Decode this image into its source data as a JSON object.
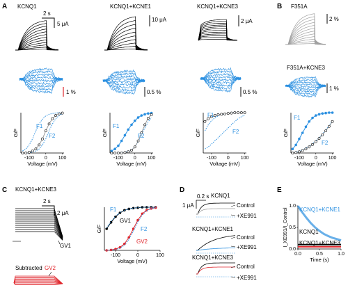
{
  "colors": {
    "black": "#000000",
    "blue": "#2a8fe0",
    "gray": "#a0a0a0",
    "red": "#e0262c",
    "fit_gray": "#9a9a9a"
  },
  "panels": {
    "A": "A",
    "B": "B",
    "C": "C",
    "D": "D",
    "E": "E"
  },
  "titles": {
    "kcnq1": "KCNQ1",
    "kcnq1_kcne1": "KCNQ1+KCNE1",
    "kcnq1_kcne3": "KCNQ1+KCNE3",
    "f351a": "F351A",
    "f351a_kcne3": "F351A+KCNE3",
    "c_title": "KCNQ1+KCNE3",
    "d_kcnq1": "KCNQ1",
    "d_kcne1": "KCNQ1+KCNE1",
    "d_kcne3": "KCNQ1+KCNE3"
  },
  "scalebars": {
    "a_time": "2 s",
    "a1_cur": "5 μA",
    "a2_cur": "10 μA",
    "a3_cur": "2 μA",
    "b_fl": "2 %",
    "a1_fl": "1 %",
    "a2_fl": "0.5 %",
    "a3_fl": "0.5 %",
    "b2_fl": "1 %",
    "c_time": "2 s",
    "c_cur": "2 μA",
    "d_time": "0.2 s",
    "d_cur": "1 μA"
  },
  "gv_axes": {
    "ylabel": "G/F",
    "xlabel": "Voltage (mV)",
    "xticks": [
      "-100",
      "0",
      "100"
    ]
  },
  "gv_labels": {
    "f1": "F1",
    "f2": "F2",
    "gv1": "GV1",
    "gv2": "GV2"
  },
  "c_labels": {
    "gv1": "GV1",
    "subtracted": "Subtracted",
    "gv2": "GV2"
  },
  "d_labels": {
    "control": "Control",
    "xe991": "+XE991"
  },
  "e_panel": {
    "ylabel": "I_XE991/I_Control",
    "xlabel": "Time (s)",
    "xticks": [
      "0.0",
      "0.5",
      "1.0"
    ],
    "yticks": [
      "0.0",
      "0.5",
      "1.0"
    ],
    "legend": [
      "KCNQ1+KCNE1",
      "KCNQ1",
      "KCNQ1+KCNE3"
    ]
  },
  "chart_data": [
    {
      "type": "line",
      "panel": "A-KCNQ1",
      "x": [
        -140,
        -120,
        -100,
        -80,
        -60,
        -40,
        -20,
        0,
        20,
        40,
        60,
        80,
        100
      ],
      "series": [
        {
          "name": "F1",
          "values": [
            0.05,
            0.1,
            0.2,
            0.35,
            0.55,
            0.72,
            0.84,
            0.92,
            0.96,
            0.98,
            0.99,
            1.0,
            1.0
          ]
        },
        {
          "name": "F2",
          "values": [
            0.0,
            0.0,
            0.01,
            0.02,
            0.05,
            0.1,
            0.2,
            0.35,
            0.55,
            0.72,
            0.85,
            0.93,
            0.97
          ]
        },
        {
          "name": "GV",
          "values": [
            0.0,
            0.0,
            0.02,
            0.05,
            0.1,
            0.2,
            0.35,
            0.55,
            0.72,
            0.85,
            0.93,
            0.97,
            0.99
          ]
        }
      ],
      "xlabel": "Voltage (mV)",
      "ylabel": "G/F",
      "xlim": [
        -150,
        110
      ],
      "ylim": [
        0,
        1
      ]
    },
    {
      "type": "line",
      "panel": "A-KCNQ1+KCNE1",
      "x": [
        -140,
        -120,
        -100,
        -80,
        -60,
        -40,
        -20,
        0,
        20,
        40,
        60,
        80,
        100
      ],
      "series": [
        {
          "name": "F1",
          "values": [
            0.05,
            0.1,
            0.18,
            0.3,
            0.44,
            0.58,
            0.7,
            0.8,
            0.88,
            0.93,
            0.96,
            0.98,
            0.99
          ]
        },
        {
          "name": "F2",
          "values": [
            0.0,
            0.0,
            0.0,
            0.01,
            0.02,
            0.04,
            0.08,
            0.15,
            0.28,
            0.45,
            0.62,
            0.77,
            0.88
          ]
        },
        {
          "name": "GV",
          "values": [
            0.0,
            0.0,
            0.0,
            0.0,
            0.01,
            0.03,
            0.07,
            0.15,
            0.3,
            0.5,
            0.7,
            0.86,
            0.95
          ]
        }
      ],
      "xlabel": "Voltage (mV)",
      "ylabel": "G/F",
      "xlim": [
        -150,
        110
      ],
      "ylim": [
        0,
        1
      ]
    },
    {
      "type": "line",
      "panel": "A-KCNQ1+KCNE3",
      "x": [
        -140,
        -120,
        -100,
        -80,
        -60,
        -40,
        -20,
        0,
        20,
        40,
        60,
        80,
        100
      ],
      "series": [
        {
          "name": "F1",
          "values": [
            0.55,
            0.7,
            0.8,
            0.87,
            0.92,
            0.95,
            0.97,
            0.98,
            0.99,
            1.0,
            1.0,
            1.0,
            1.0
          ]
        },
        {
          "name": "F2",
          "values": [
            0.1,
            0.15,
            0.22,
            0.3,
            0.38,
            0.46,
            0.54,
            0.62,
            0.7,
            0.78,
            0.85,
            0.9,
            0.94
          ]
        },
        {
          "name": "GV",
          "values": [
            0.78,
            0.85,
            0.9,
            0.93,
            0.95,
            0.96,
            0.97,
            0.98,
            0.99,
            1.0,
            1.0,
            1.0,
            1.0
          ]
        }
      ],
      "xlabel": "Voltage (mV)",
      "ylabel": "G/F",
      "xlim": [
        -150,
        110
      ],
      "ylim": [
        0,
        1
      ]
    },
    {
      "type": "line",
      "panel": "B-F351A+KCNE3",
      "x": [
        -140,
        -120,
        -100,
        -80,
        -60,
        -40,
        -20,
        0,
        20,
        40,
        60,
        80,
        100
      ],
      "series": [
        {
          "name": "F1",
          "values": [
            0.1,
            0.2,
            0.35,
            0.5,
            0.65,
            0.78,
            0.87,
            0.93,
            0.96,
            0.98,
            0.99,
            1.0,
            1.0
          ]
        },
        {
          "name": "F2",
          "values": [
            0.0,
            0.02,
            0.05,
            0.08,
            0.12,
            0.17,
            0.23,
            0.3,
            0.38,
            0.47,
            0.57,
            0.68,
            0.8
          ]
        },
        {
          "name": "GV",
          "values": [
            0.0,
            0.01,
            0.03,
            0.06,
            0.1,
            0.15,
            0.21,
            0.28,
            0.36,
            0.45,
            0.55,
            0.66,
            0.78
          ]
        }
      ],
      "xlabel": "Voltage (mV)",
      "ylabel": "G/F",
      "xlim": [
        -150,
        110
      ],
      "ylim": [
        0,
        1
      ]
    },
    {
      "type": "line",
      "panel": "C-GV",
      "x": [
        -140,
        -120,
        -100,
        -80,
        -60,
        -40,
        -20,
        0,
        20,
        40,
        60,
        80
      ],
      "series": [
        {
          "name": "GV1",
          "values": [
            0.5,
            0.65,
            0.78,
            0.87,
            0.93,
            0.96,
            0.98,
            0.99,
            1.0,
            1.0,
            1.0,
            1.0
          ]
        },
        {
          "name": "GV2",
          "values": [
            0.0,
            0.01,
            0.03,
            0.07,
            0.15,
            0.3,
            0.5,
            0.7,
            0.85,
            0.93,
            0.97,
            0.99
          ]
        },
        {
          "name": "F1",
          "values": [
            0.52,
            0.67,
            0.79,
            0.88,
            0.93,
            0.96,
            0.98,
            0.99,
            1.0,
            1.0,
            1.0,
            1.0
          ]
        },
        {
          "name": "F2",
          "values": [
            0.0,
            0.01,
            0.02,
            0.05,
            0.12,
            0.25,
            0.45,
            0.66,
            0.82,
            0.92,
            0.97,
            0.99
          ]
        }
      ],
      "xlabel": "Voltage (mV)",
      "ylabel": "G/F",
      "xlim": [
        -150,
        100
      ],
      "ylim": [
        0,
        1
      ]
    },
    {
      "type": "line",
      "panel": "E",
      "x": [
        0.0,
        0.1,
        0.2,
        0.3,
        0.4,
        0.5,
        0.6,
        0.7,
        0.8,
        0.9,
        1.0
      ],
      "series": [
        {
          "name": "KCNQ1+KCNE1",
          "values": [
            1.0,
            0.85,
            0.72,
            0.6,
            0.5,
            0.42,
            0.35,
            0.3,
            0.26,
            0.23,
            0.2
          ]
        },
        {
          "name": "KCNQ1",
          "values": [
            0.1,
            0.1,
            0.1,
            0.1,
            0.1,
            0.1,
            0.1,
            0.1,
            0.1,
            0.1,
            0.1
          ]
        },
        {
          "name": "KCNQ1+KCNE3",
          "values": [
            0.05,
            0.05,
            0.05,
            0.05,
            0.05,
            0.05,
            0.05,
            0.05,
            0.05,
            0.05,
            0.05
          ]
        }
      ],
      "xlabel": "Time (s)",
      "ylabel": "I_XE991/I_Control",
      "xlim": [
        0,
        1
      ],
      "ylim": [
        0,
        1
      ]
    }
  ]
}
